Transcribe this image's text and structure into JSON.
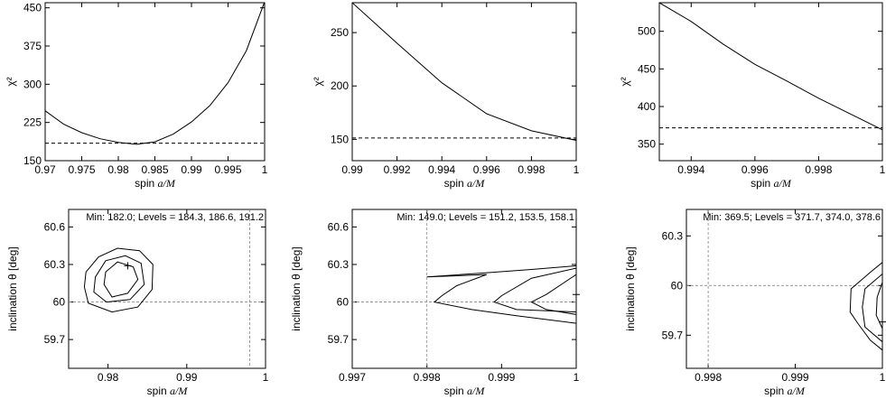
{
  "chart_data": [
    {
      "id": "p1",
      "type": "line",
      "xlabel": "spin ",
      "xlabel_italic": "a/M",
      "ylabel": "χ²",
      "xlim": [
        0.97,
        1.0
      ],
      "ylim": [
        150,
        460
      ],
      "xticks": [
        0.97,
        0.975,
        0.98,
        0.985,
        0.99,
        0.995,
        1.0
      ],
      "xtick_labels": [
        "0.97",
        "0.975",
        "0.98",
        "0.985",
        "0.99",
        "0.995",
        "1"
      ],
      "yticks": [
        150,
        225,
        300,
        375,
        450
      ],
      "ytick_labels": [
        "150",
        "225",
        "300",
        "375",
        "450"
      ],
      "series": [
        {
          "x": [
            0.97,
            0.9725,
            0.975,
            0.9775,
            0.98,
            0.9825,
            0.985,
            0.9875,
            0.99,
            0.9925,
            0.995,
            0.9975,
            1.0
          ],
          "y": [
            248,
            222,
            205,
            193,
            186,
            182,
            187,
            202,
            226,
            258,
            303,
            366,
            462
          ]
        }
      ],
      "hline": 184.3
    },
    {
      "id": "p2",
      "type": "line",
      "xlabel": "spin ",
      "xlabel_italic": "a/M",
      "ylabel": "χ²",
      "xlim": [
        0.99,
        1.0
      ],
      "ylim": [
        130,
        278
      ],
      "xticks": [
        0.99,
        0.992,
        0.994,
        0.996,
        0.998,
        1.0
      ],
      "xtick_labels": [
        "0.99",
        "0.992",
        "0.994",
        "0.996",
        "0.998",
        "1"
      ],
      "yticks": [
        150,
        200,
        250
      ],
      "ytick_labels": [
        "150",
        "200",
        "250"
      ],
      "series": [
        {
          "x": [
            0.99,
            0.992,
            0.994,
            0.996,
            0.998,
            1.0
          ],
          "y": [
            278,
            240,
            203,
            174,
            158,
            149
          ]
        }
      ],
      "hline": 151.2
    },
    {
      "id": "p3",
      "type": "line",
      "xlabel": "spin ",
      "xlabel_italic": "a/M",
      "ylabel": "χ²",
      "xlim": [
        0.993,
        1.0
      ],
      "ylim": [
        328,
        538
      ],
      "xticks": [
        0.994,
        0.996,
        0.998,
        1.0
      ],
      "xtick_labels": [
        "0.994",
        "0.996",
        "0.998",
        "1"
      ],
      "yticks": [
        350,
        400,
        450,
        500
      ],
      "ytick_labels": [
        "350",
        "400",
        "450",
        "500"
      ],
      "series": [
        {
          "x": [
            0.993,
            0.994,
            0.995,
            0.996,
            0.997,
            0.998,
            0.999,
            1.0
          ],
          "y": [
            538,
            513,
            483,
            456,
            434,
            411,
            390,
            369
          ]
        }
      ],
      "hline": 371.7
    },
    {
      "id": "p4",
      "type": "contour",
      "xlabel": "spin ",
      "xlabel_italic": "a/M",
      "ylabel": "inclination θ [deg]",
      "annotation": "Min: 182.0; Levels = 184.3, 186.6, 191.2",
      "xlim": [
        0.975,
        1.0
      ],
      "ylim": [
        59.47,
        60.74
      ],
      "xticks": [
        0.98,
        0.99,
        1.0
      ],
      "xtick_labels": [
        "0.98",
        "0.99",
        "1"
      ],
      "yticks": [
        59.7,
        60.0,
        60.3,
        60.6
      ],
      "ytick_labels": [
        "59.7",
        "60",
        "60.3",
        "60.6"
      ],
      "vline": 0.998,
      "hline": 60.0,
      "best_fit": [
        0.9825,
        60.29
      ],
      "contours": [
        [
          [
            0.9795,
            60.14
          ],
          [
            0.9805,
            60.04
          ],
          [
            0.9825,
            60.07
          ],
          [
            0.9838,
            60.18
          ],
          [
            0.9832,
            60.28
          ],
          [
            0.9812,
            60.32
          ],
          [
            0.9797,
            60.24
          ]
        ],
        [
          [
            0.9782,
            60.08
          ],
          [
            0.9798,
            60.0
          ],
          [
            0.9828,
            60.02
          ],
          [
            0.9846,
            60.14
          ],
          [
            0.9842,
            60.31
          ],
          [
            0.9822,
            60.37
          ],
          [
            0.9797,
            60.33
          ],
          [
            0.9784,
            60.2
          ]
        ],
        [
          [
            0.977,
            60.12
          ],
          [
            0.9775,
            59.99
          ],
          [
            0.9805,
            59.92
          ],
          [
            0.9838,
            59.96
          ],
          [
            0.9856,
            60.1
          ],
          [
            0.9857,
            60.3
          ],
          [
            0.984,
            60.41
          ],
          [
            0.9812,
            60.43
          ],
          [
            0.9788,
            60.36
          ],
          [
            0.9772,
            60.24
          ]
        ]
      ]
    },
    {
      "id": "p5",
      "type": "contour",
      "xlabel": "spin ",
      "xlabel_italic": "a/M",
      "ylabel": "inclination θ [deg]",
      "annotation": "Min: 149.0; Levels = 151.2, 153.5, 158.1",
      "xlim": [
        0.997,
        1.0
      ],
      "ylim": [
        59.47,
        60.74
      ],
      "xticks": [
        0.997,
        0.998,
        0.999,
        1.0
      ],
      "xtick_labels": [
        "0.997",
        "0.998",
        "0.999",
        "1"
      ],
      "yticks": [
        59.7,
        60.0,
        60.3,
        60.6
      ],
      "ytick_labels": [
        "59.7",
        "60",
        "60.3",
        "60.6"
      ],
      "vline": 0.998,
      "hline": 60.0,
      "best_fit": [
        1.0,
        60.06
      ],
      "contours": [
        [
          [
            1.0,
            60.22
          ],
          [
            0.9996,
            60.06
          ],
          [
            0.9994,
            60.0
          ],
          [
            0.9996,
            59.94
          ],
          [
            1.0,
            59.9
          ]
        ],
        [
          [
            1.0,
            60.27
          ],
          [
            0.9994,
            60.19
          ],
          [
            0.999,
            60.05
          ],
          [
            0.9989,
            60.0
          ],
          [
            0.9992,
            59.94
          ],
          [
            1.0,
            59.92
          ]
        ],
        [
          [
            1.0,
            60.29
          ],
          [
            0.9994,
            60.26
          ],
          [
            0.9987,
            60.23
          ],
          [
            0.998,
            60.2
          ],
          [
            0.9988,
            60.22
          ],
          [
            0.9984,
            60.13
          ],
          [
            0.9982,
            60.05
          ],
          [
            0.9981,
            60.0
          ],
          [
            0.9986,
            59.94
          ],
          [
            0.9992,
            59.89
          ],
          [
            1.0,
            59.83
          ]
        ]
      ]
    },
    {
      "id": "p6",
      "type": "contour",
      "xlabel": "spin ",
      "xlabel_italic": "a/M",
      "ylabel": "inclination θ [deg]",
      "annotation": "Min: 369.5; Levels = 371.7, 374.0, 378.6",
      "xlim": [
        0.99775,
        1.0
      ],
      "ylim": [
        59.5,
        60.46
      ],
      "xticks": [
        0.998,
        0.999,
        1.0
      ],
      "xtick_labels": [
        "0.998",
        "0.999",
        "1"
      ],
      "yticks": [
        59.7,
        60.0,
        60.3
      ],
      "ytick_labels": [
        "59.7",
        "60",
        "60.3"
      ],
      "vline": 0.998,
      "hline": 60.0,
      "best_fit": [
        1.0,
        59.78
      ],
      "contours": [
        [
          [
            1.0,
            60.02
          ],
          [
            0.99994,
            59.93
          ],
          [
            0.99993,
            59.82
          ],
          [
            1.0,
            59.74
          ]
        ],
        [
          [
            1.0,
            60.07
          ],
          [
            0.9998,
            59.98
          ],
          [
            0.99977,
            59.87
          ],
          [
            0.9998,
            59.75
          ],
          [
            1.0,
            59.66
          ]
        ],
        [
          [
            1.0,
            60.14
          ],
          [
            0.99986,
            60.08
          ],
          [
            0.99964,
            59.98
          ],
          [
            0.99963,
            59.84
          ],
          [
            0.99972,
            59.77
          ],
          [
            0.99986,
            59.67
          ],
          [
            1.0,
            59.61
          ]
        ]
      ]
    }
  ]
}
